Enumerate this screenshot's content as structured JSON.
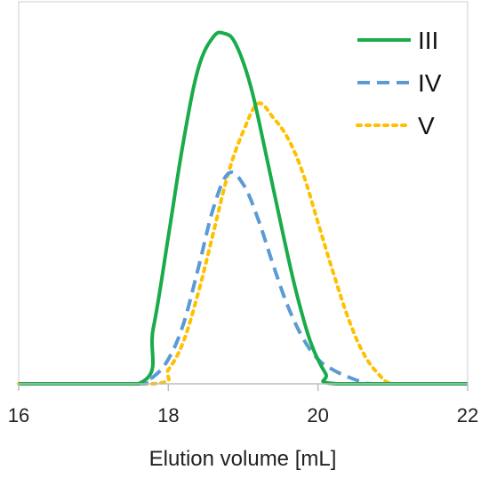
{
  "chart_data": {
    "type": "line",
    "title": "",
    "xlabel": "Elution volume [mL]",
    "ylabel": "",
    "xlim": [
      16,
      22
    ],
    "ylim": [
      0,
      1.05
    ],
    "x_ticks": [
      "16",
      "18",
      "20",
      "22"
    ],
    "grid": false,
    "legend_position": "top-right",
    "series": [
      {
        "name": "III",
        "color": "#1aab4b",
        "dash": "solid",
        "x": [
          16,
          17.6,
          17.8,
          18.0,
          18.2,
          18.4,
          18.6,
          18.75,
          18.9,
          19.1,
          19.3,
          19.5,
          19.7,
          19.9,
          20.1,
          20.25,
          22
        ],
        "y": [
          0,
          0,
          0.16,
          0.42,
          0.69,
          0.9,
          0.99,
          1.0,
          0.97,
          0.85,
          0.66,
          0.46,
          0.27,
          0.12,
          0.03,
          0,
          0
        ]
      },
      {
        "name": "IV",
        "color": "#5b9bd5",
        "dash": "dashed",
        "x": [
          16,
          17.6,
          17.8,
          18.0,
          18.2,
          18.4,
          18.6,
          18.8,
          19.0,
          19.2,
          19.4,
          19.6,
          19.8,
          20.0,
          20.2,
          20.4,
          20.6,
          20.8,
          22
        ],
        "y": [
          0,
          0,
          0.02,
          0.07,
          0.17,
          0.33,
          0.5,
          0.6,
          0.57,
          0.47,
          0.34,
          0.22,
          0.13,
          0.07,
          0.04,
          0.02,
          0.005,
          0,
          0
        ]
      },
      {
        "name": "V",
        "color": "#ffc000",
        "dash": "dotted",
        "x": [
          16,
          17.8,
          18.0,
          18.2,
          18.4,
          18.6,
          18.8,
          19.0,
          19.2,
          19.4,
          19.6,
          19.8,
          20.0,
          20.2,
          20.4,
          20.6,
          20.8,
          21.0,
          21.5
        ],
        "y": [
          0,
          0,
          0.04,
          0.12,
          0.26,
          0.43,
          0.6,
          0.72,
          0.8,
          0.76,
          0.7,
          0.6,
          0.46,
          0.32,
          0.19,
          0.09,
          0.03,
          0,
          0
        ]
      }
    ]
  }
}
